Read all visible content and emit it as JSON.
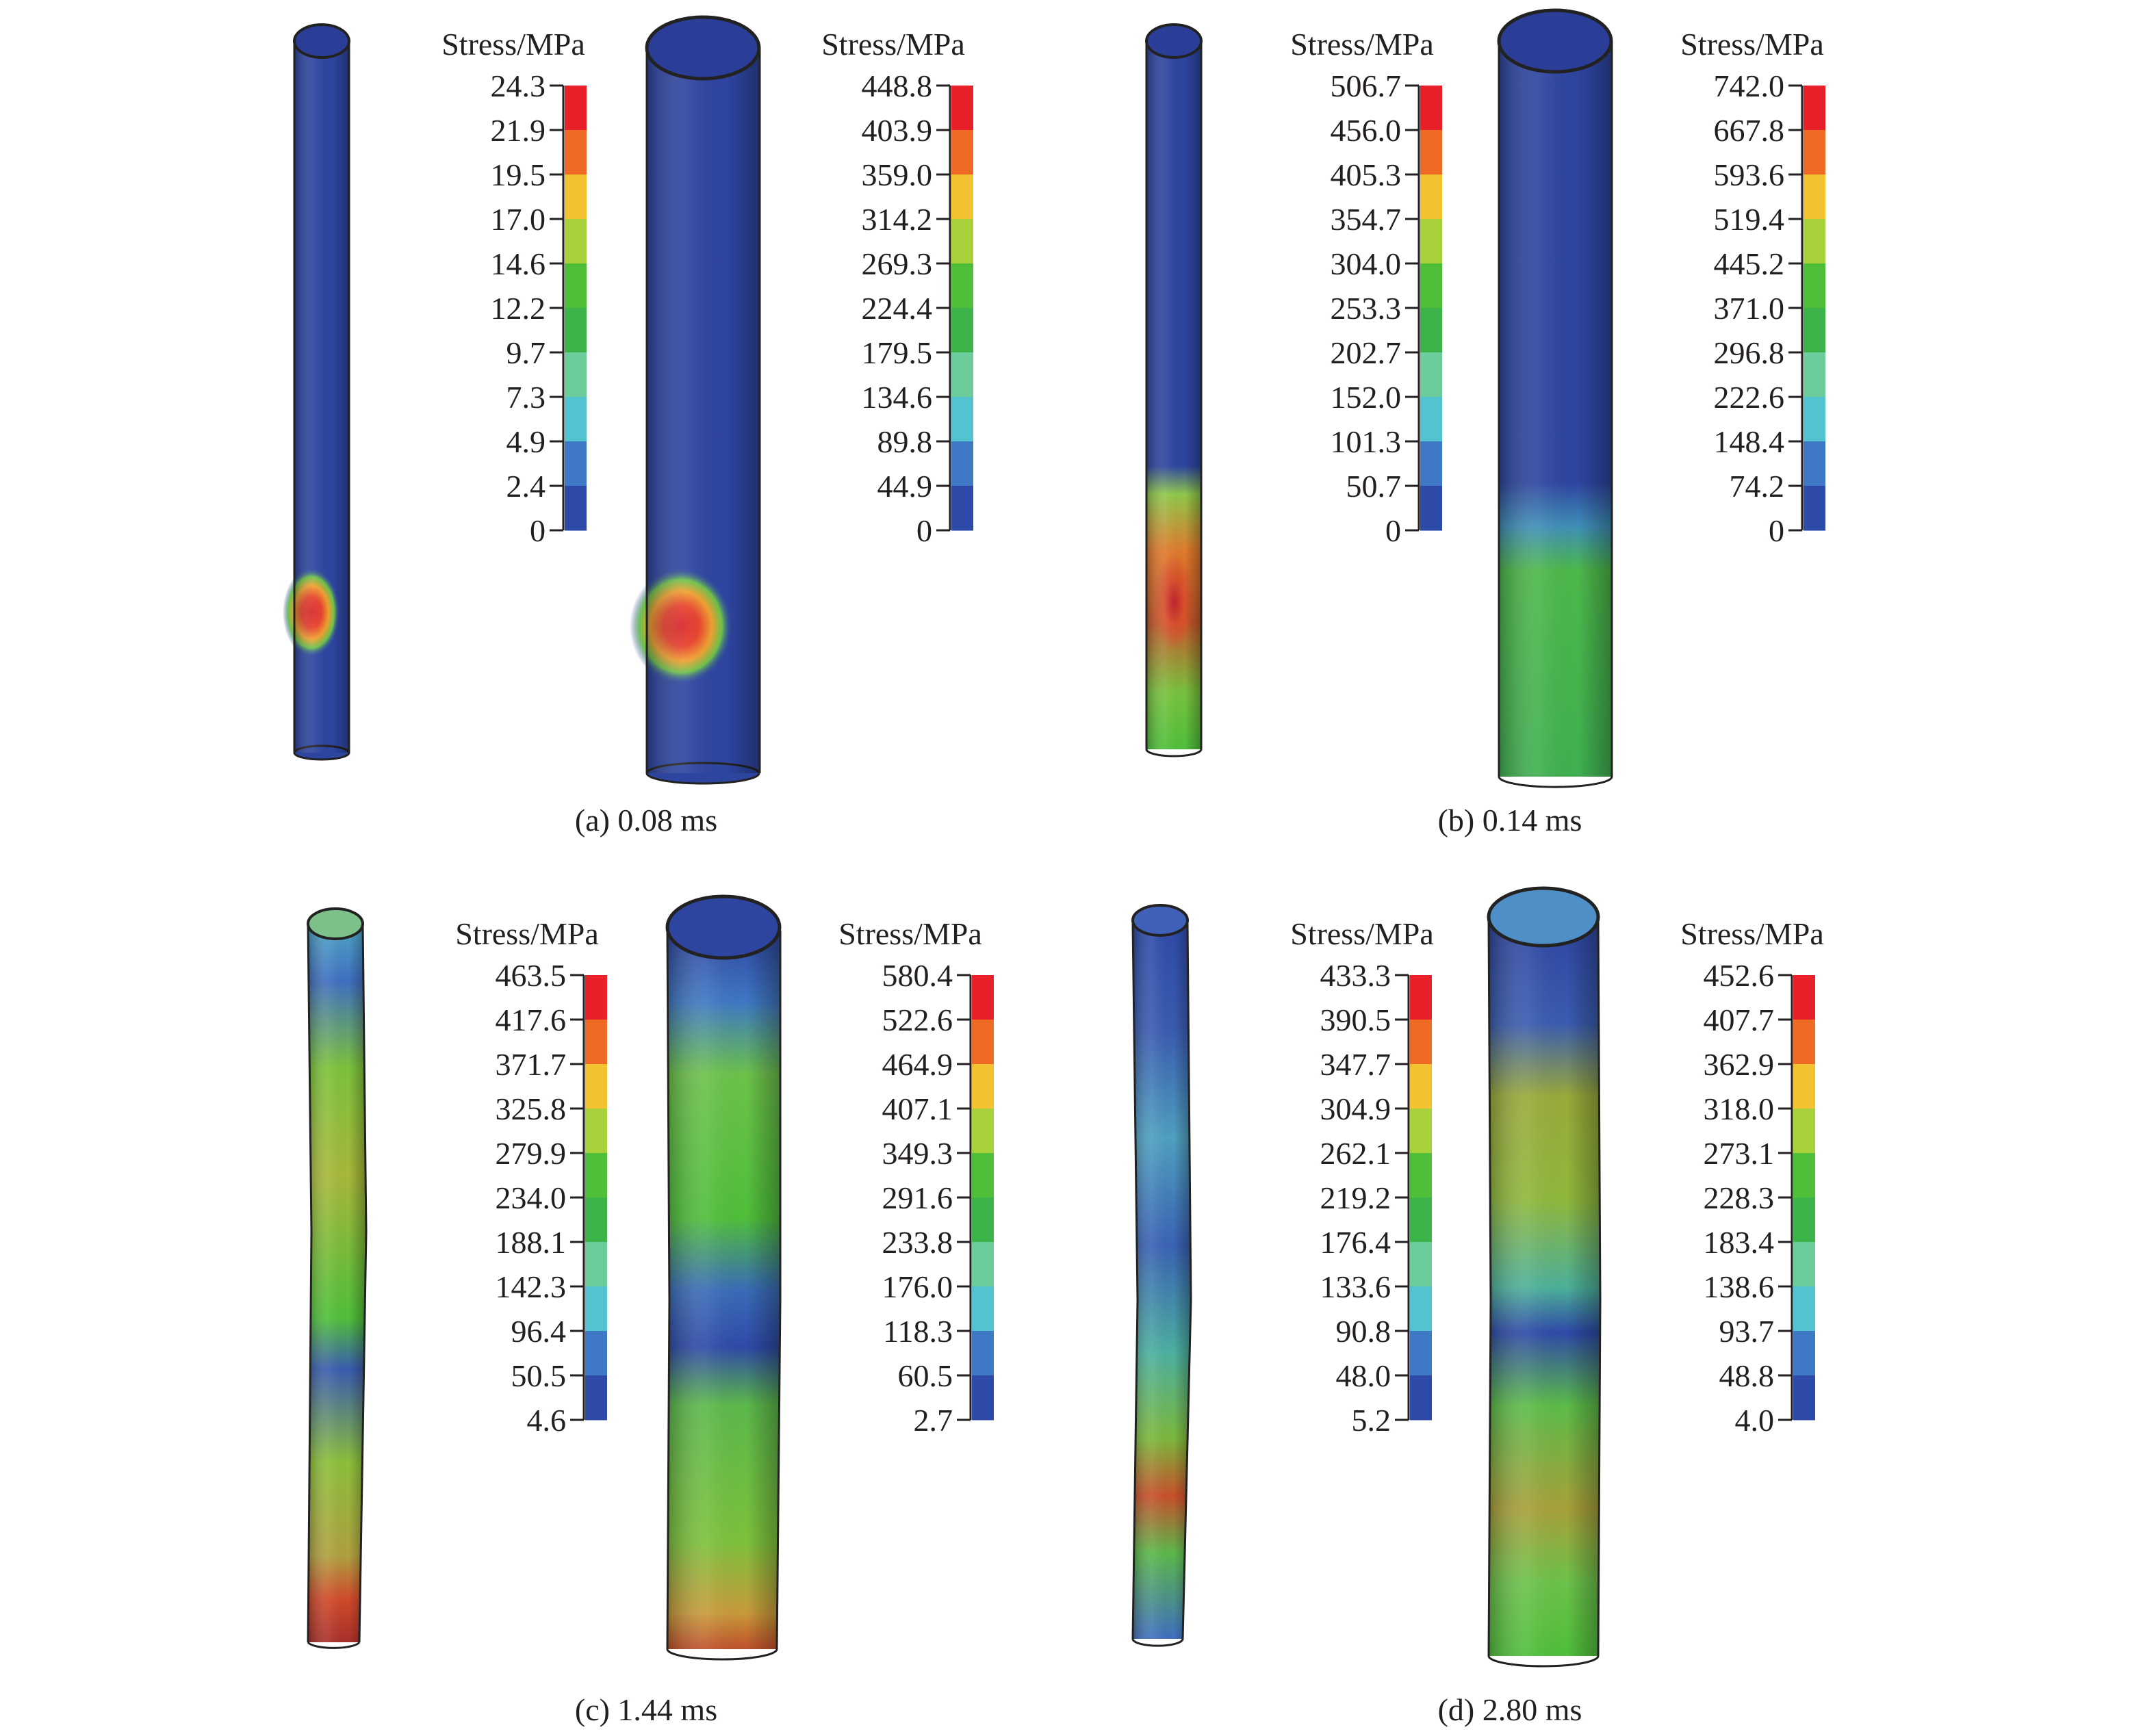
{
  "panels": [
    {
      "caption": "(a) 0.08 ms",
      "unit_label": "Stress/MPa",
      "scale_small": [
        "24.3",
        "21.9",
        "19.5",
        "17.0",
        "14.6",
        "12.2",
        "9.7",
        "7.3",
        "4.9",
        "2.4",
        "0"
      ],
      "scale_large": [
        "448.8",
        "403.9",
        "359.0",
        "314.2",
        "269.3",
        "224.4",
        "179.5",
        "134.6",
        "89.8",
        "44.9",
        "0"
      ]
    },
    {
      "caption": "(b) 0.14 ms",
      "unit_label": "Stress/MPa",
      "scale_small": [
        "506.7",
        "456.0",
        "405.3",
        "354.7",
        "304.0",
        "253.3",
        "202.7",
        "152.0",
        "101.3",
        "50.7",
        "0"
      ],
      "scale_large": [
        "742.0",
        "667.8",
        "593.6",
        "519.4",
        "445.2",
        "371.0",
        "296.8",
        "222.6",
        "148.4",
        "74.2",
        "0"
      ]
    },
    {
      "caption": "(c) 1.44 ms",
      "unit_label": "Stress/MPa",
      "scale_small": [
        "463.5",
        "417.6",
        "371.7",
        "325.8",
        "279.9",
        "234.0",
        "188.1",
        "142.3",
        "96.4",
        "50.5",
        "4.6"
      ],
      "scale_large": [
        "580.4",
        "522.6",
        "464.9",
        "407.1",
        "349.3",
        "291.6",
        "233.8",
        "176.0",
        "118.3",
        "60.5",
        "2.7"
      ]
    },
    {
      "caption": "(d) 2.80 ms",
      "unit_label": "Stress/MPa",
      "scale_small": [
        "433.3",
        "390.5",
        "347.7",
        "304.9",
        "262.1",
        "219.2",
        "176.4",
        "133.6",
        "90.8",
        "48.0",
        "5.2"
      ],
      "scale_large": [
        "452.6",
        "407.7",
        "362.9",
        "318.0",
        "273.1",
        "228.3",
        "183.4",
        "138.6",
        "93.7",
        "48.8",
        "4.0"
      ]
    }
  ],
  "colormap": [
    "#e8202a",
    "#ef6a25",
    "#f2c230",
    "#a8d13c",
    "#4fbf3a",
    "#3cb44a",
    "#6ccc9a",
    "#52c3cf",
    "#3f78c4",
    "#2e4aa8"
  ]
}
